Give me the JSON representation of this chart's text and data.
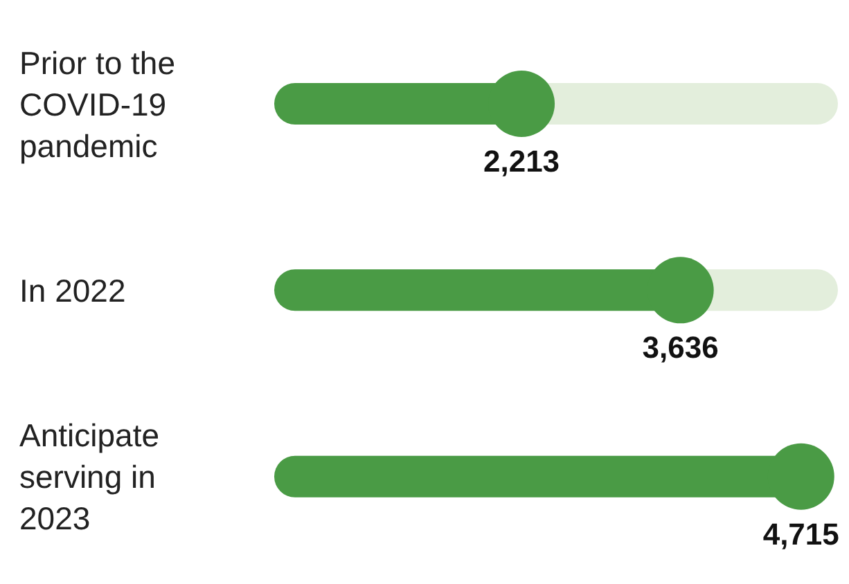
{
  "chart_data": {
    "type": "lollipop",
    "orientation": "horizontal",
    "categories": [
      "Prior to the COVID-19 pandemic",
      "In 2022",
      "Anticipate serving in 2023"
    ],
    "values": [
      2213,
      3636,
      4715
    ],
    "value_labels": [
      "2,213",
      "3,636",
      "4,715"
    ],
    "color": "#4a9b45",
    "marker": "circle"
  }
}
